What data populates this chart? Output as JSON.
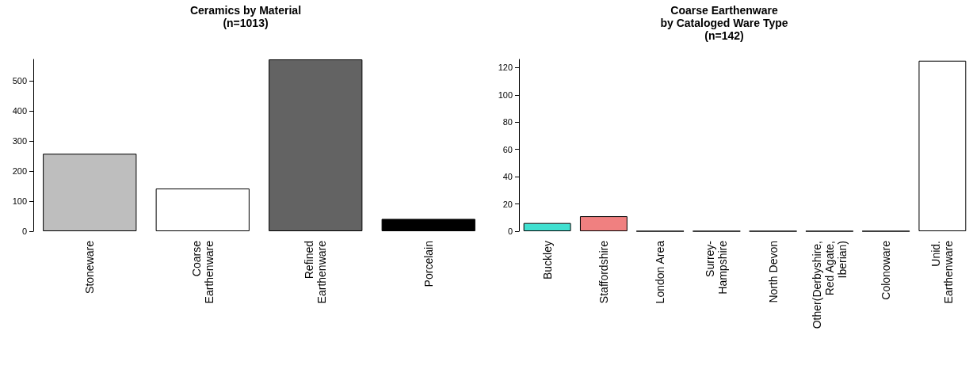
{
  "chart_data": [
    {
      "type": "bar",
      "title": "Ceramics by Material\n(n=1013)",
      "categories": [
        "Stoneware",
        "Coarse\nEarthenware",
        "Refined\nEarthenware",
        "Porcelain"
      ],
      "values": [
        258,
        142,
        572,
        41
      ],
      "colors": [
        "#bebebe",
        "#ffffff",
        "#636363",
        "#000000"
      ],
      "ylim": [
        0,
        572
      ],
      "yticks": [
        0,
        100,
        200,
        300,
        400,
        500
      ],
      "grid": false
    },
    {
      "type": "bar",
      "title": "Coarse Earthenware\nby Cataloged Ware Type\n(n=142)",
      "categories": [
        "Buckley",
        "Staffordshire",
        "London Area",
        "Surrey-\nHampshire",
        "North Devon",
        "Other(Derbyshire,\nRed Agate,\nIberian)",
        "Colonoware",
        "Unid.\nEarthenware"
      ],
      "values": [
        6,
        11,
        0,
        0,
        0,
        0,
        0,
        125
      ],
      "colors": [
        "#40e0d0",
        "#f08080",
        "#ffffff",
        "#ffffff",
        "#ffffff",
        "#ffffff",
        "#ffffff",
        "#ffffff"
      ],
      "ylim": [
        0,
        126
      ],
      "yticks": [
        0,
        20,
        40,
        60,
        80,
        100,
        120
      ],
      "grid": false
    }
  ]
}
